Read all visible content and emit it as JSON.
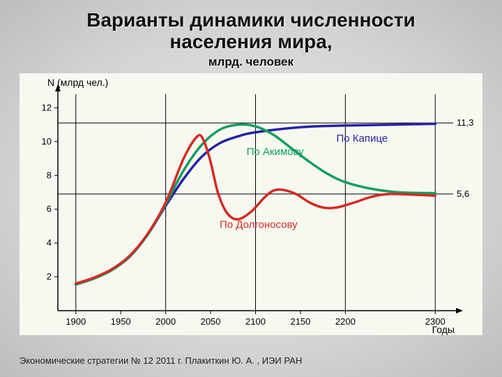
{
  "title_line1": "Варианты динамики численности",
  "title_line2": "населения мира,",
  "subtitle": "млрд. человек",
  "source": "Экономические стратегии № 12 2011 г. Плакиткин Ю. А. , ИЭИ РАН",
  "chart": {
    "type": "line",
    "background_color": "#f7f9f1",
    "axis_color": "#000000",
    "axis_width": 1.5,
    "axis_label_color": "#000000",
    "y_axis_title": "N (млрд чел.)",
    "y_axis_title_fontsize": 14,
    "x_axis_title": "Годы",
    "x_axis_title_fontsize": 14,
    "tick_label_fontsize": 13,
    "x_ticks": [
      1900,
      1950,
      2000,
      2050,
      2100,
      2150,
      2200,
      2300
    ],
    "x_major_lines": [
      1900,
      2000,
      2100,
      2200,
      2300
    ],
    "y_ticks": [
      2,
      4,
      6,
      8,
      10,
      12
    ],
    "ylim": [
      0,
      12.8
    ],
    "xlim": [
      1880,
      2320
    ],
    "vgrid_color": "#000000",
    "hguides": [
      {
        "y": 6.9,
        "label_right": "5,6"
      },
      {
        "y": 11.1,
        "label_right": "11,3"
      }
    ],
    "hguide_color": "#000000",
    "hguide_width": 1,
    "hguide_label_fontsize": 13,
    "series": [
      {
        "name": "По Капице",
        "color": "#2323a6",
        "width": 3.5,
        "label_pos": {
          "x_year": 2190,
          "y_val": 10.0
        },
        "label_fontsize": 15,
        "points": [
          [
            1900,
            1.55
          ],
          [
            1920,
            1.9
          ],
          [
            1940,
            2.4
          ],
          [
            1960,
            3.2
          ],
          [
            1980,
            4.5
          ],
          [
            2000,
            6.2
          ],
          [
            2020,
            7.8
          ],
          [
            2040,
            9.1
          ],
          [
            2060,
            9.9
          ],
          [
            2080,
            10.3
          ],
          [
            2100,
            10.55
          ],
          [
            2150,
            10.85
          ],
          [
            2200,
            10.95
          ],
          [
            2250,
            11.0
          ],
          [
            2300,
            11.05
          ]
        ]
      },
      {
        "name": "По Акимову",
        "color": "#119e5e",
        "width": 3.5,
        "label_pos": {
          "x_year": 2090,
          "y_val": 9.2
        },
        "label_fontsize": 15,
        "points": [
          [
            1900,
            1.55
          ],
          [
            1920,
            1.9
          ],
          [
            1940,
            2.4
          ],
          [
            1960,
            3.2
          ],
          [
            1980,
            4.5
          ],
          [
            2000,
            6.3
          ],
          [
            2020,
            8.3
          ],
          [
            2040,
            9.8
          ],
          [
            2060,
            10.7
          ],
          [
            2080,
            11.0
          ],
          [
            2100,
            10.9
          ],
          [
            2120,
            10.4
          ],
          [
            2140,
            9.6
          ],
          [
            2160,
            8.8
          ],
          [
            2180,
            8.1
          ],
          [
            2200,
            7.6
          ],
          [
            2230,
            7.2
          ],
          [
            2260,
            7.0
          ],
          [
            2300,
            6.95
          ]
        ]
      },
      {
        "name": "По Долгоносову",
        "color": "#d42a22",
        "width": 3.5,
        "label_pos": {
          "x_year": 2060,
          "y_val": 4.9
        },
        "label_fontsize": 15,
        "points": [
          [
            1900,
            1.6
          ],
          [
            1920,
            1.95
          ],
          [
            1940,
            2.45
          ],
          [
            1960,
            3.25
          ],
          [
            1980,
            4.55
          ],
          [
            2000,
            6.4
          ],
          [
            2020,
            9.0
          ],
          [
            2035,
            10.3
          ],
          [
            2042,
            10.1
          ],
          [
            2050,
            8.8
          ],
          [
            2058,
            7.0
          ],
          [
            2068,
            5.8
          ],
          [
            2080,
            5.4
          ],
          [
            2095,
            5.85
          ],
          [
            2110,
            6.7
          ],
          [
            2120,
            7.1
          ],
          [
            2130,
            7.15
          ],
          [
            2145,
            6.9
          ],
          [
            2160,
            6.4
          ],
          [
            2175,
            6.1
          ],
          [
            2190,
            6.1
          ],
          [
            2210,
            6.4
          ],
          [
            2230,
            6.75
          ],
          [
            2250,
            6.9
          ],
          [
            2280,
            6.85
          ],
          [
            2300,
            6.8
          ]
        ]
      }
    ]
  }
}
